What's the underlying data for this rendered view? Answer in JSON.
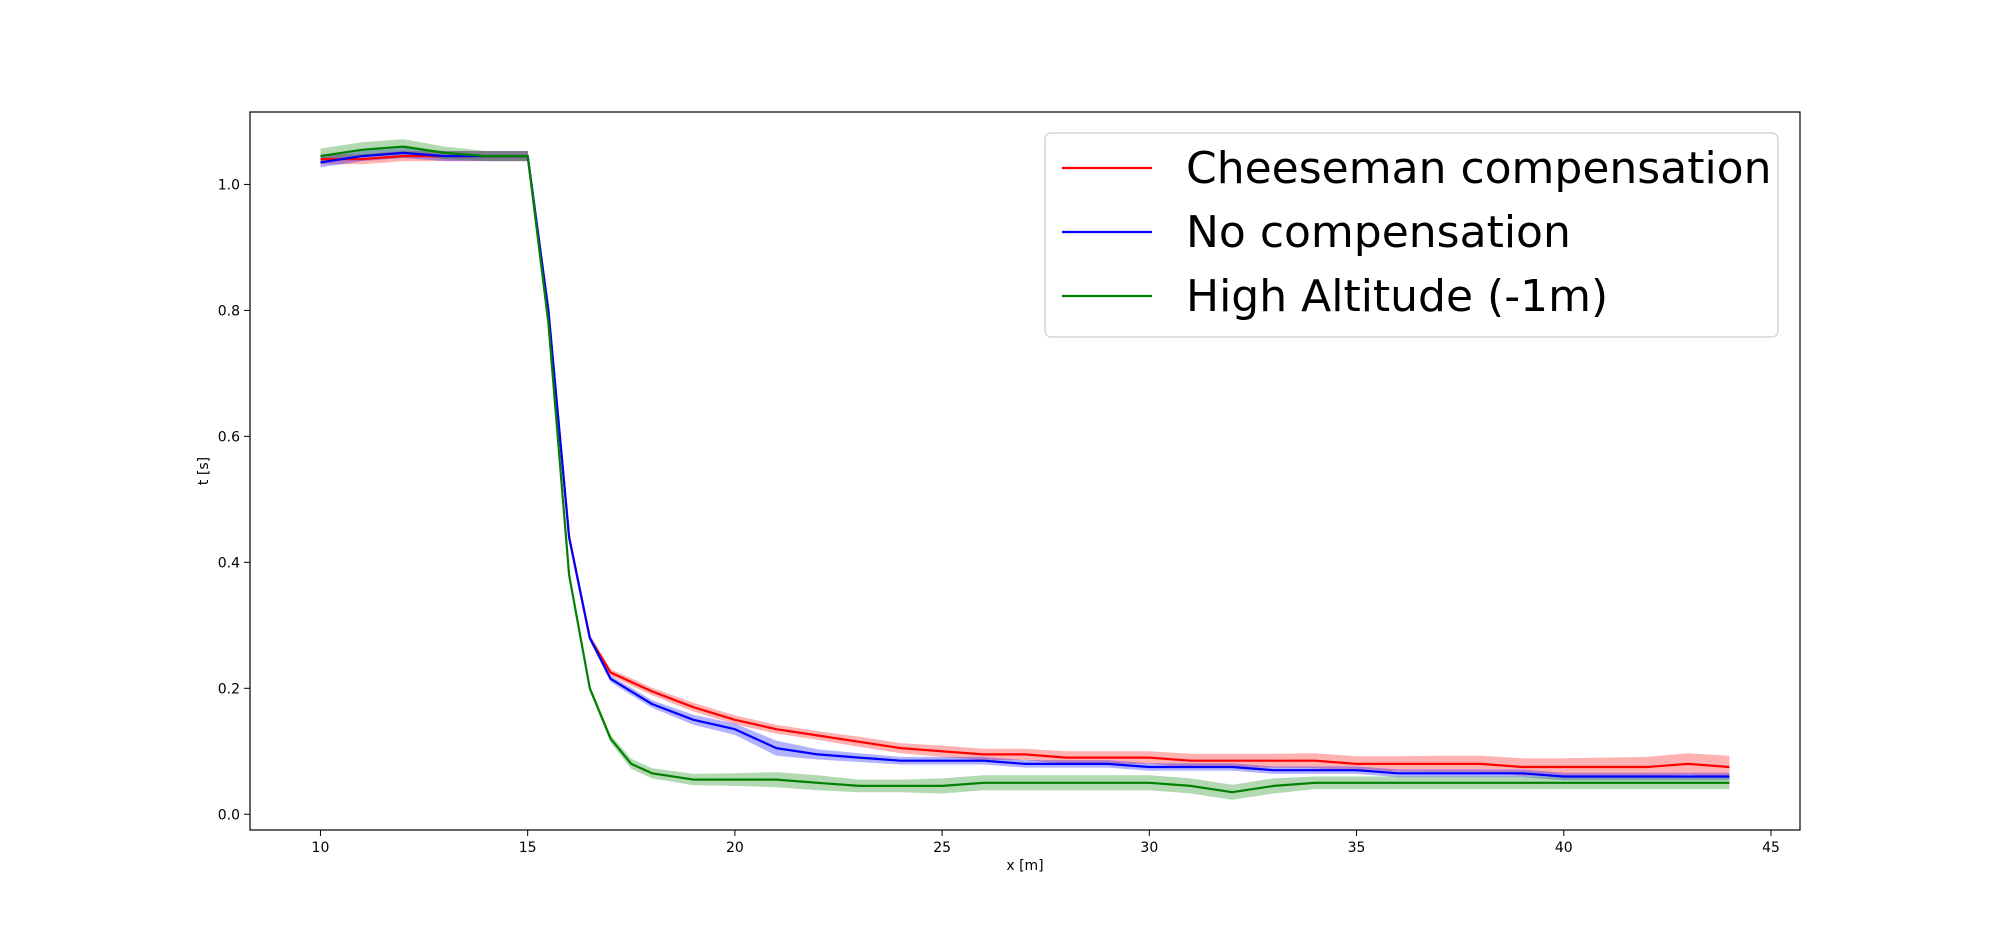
{
  "chart_data": {
    "type": "line",
    "title": "",
    "xlabel": "x [m]",
    "ylabel": "t [s]",
    "xlim": [
      8.3,
      45.7
    ],
    "ylim": [
      -0.025,
      1.115
    ],
    "grid": false,
    "legend_position": "top-right",
    "x_ticks": [
      10,
      15,
      20,
      25,
      30,
      35,
      40,
      45
    ],
    "y_ticks": [
      0.0,
      0.2,
      0.4,
      0.6,
      0.8,
      1.0
    ],
    "x_tick_labels": [
      "10",
      "15",
      "20",
      "25",
      "30",
      "35",
      "40",
      "45"
    ],
    "y_tick_labels": [
      "0.0",
      "0.2",
      "0.4",
      "0.6",
      "0.8",
      "1.0"
    ],
    "series": [
      {
        "name": "Cheeseman compensation",
        "color": "#ff0000",
        "x": [
          10,
          11,
          12,
          13,
          14,
          15,
          15.5,
          16,
          16.5,
          17,
          17.5,
          18,
          19,
          20,
          21,
          22,
          23,
          24,
          25,
          26,
          27,
          28,
          29,
          30,
          31,
          32,
          33,
          34,
          35,
          36,
          37,
          38,
          39,
          40,
          41,
          42,
          43,
          44
        ],
        "y": [
          1.04,
          1.04,
          1.045,
          1.045,
          1.045,
          1.045,
          0.8,
          0.44,
          0.28,
          0.225,
          0.21,
          0.195,
          0.17,
          0.15,
          0.135,
          0.125,
          0.115,
          0.105,
          0.1,
          0.095,
          0.095,
          0.09,
          0.09,
          0.09,
          0.085,
          0.085,
          0.085,
          0.085,
          0.08,
          0.08,
          0.08,
          0.08,
          0.075,
          0.075,
          0.075,
          0.075,
          0.08,
          0.075
        ],
        "band": [
          0.008,
          0.008,
          0.008,
          0.008,
          0.008,
          0.008,
          0.005,
          0.005,
          0.005,
          0.005,
          0.006,
          0.006,
          0.007,
          0.007,
          0.007,
          0.007,
          0.008,
          0.008,
          0.009,
          0.009,
          0.009,
          0.01,
          0.01,
          0.01,
          0.011,
          0.011,
          0.011,
          0.012,
          0.012,
          0.012,
          0.013,
          0.013,
          0.014,
          0.014,
          0.015,
          0.016,
          0.017,
          0.018
        ]
      },
      {
        "name": "No compensation",
        "color": "#0000ff",
        "x": [
          10,
          11,
          12,
          13,
          14,
          15,
          15.5,
          16,
          16.5,
          17,
          17.5,
          18,
          19,
          20,
          21,
          22,
          23,
          24,
          25,
          26,
          27,
          28,
          29,
          30,
          31,
          32,
          33,
          34,
          35,
          36,
          37,
          38,
          39,
          40,
          41,
          42,
          43,
          44
        ],
        "y": [
          1.035,
          1.045,
          1.05,
          1.045,
          1.045,
          1.045,
          0.8,
          0.44,
          0.28,
          0.215,
          0.195,
          0.175,
          0.15,
          0.135,
          0.105,
          0.095,
          0.09,
          0.085,
          0.085,
          0.085,
          0.08,
          0.08,
          0.08,
          0.075,
          0.075,
          0.075,
          0.07,
          0.07,
          0.07,
          0.065,
          0.065,
          0.065,
          0.065,
          0.06,
          0.06,
          0.06,
          0.06,
          0.06
        ],
        "band": [
          0.008,
          0.008,
          0.008,
          0.008,
          0.008,
          0.008,
          0.005,
          0.005,
          0.005,
          0.005,
          0.006,
          0.006,
          0.008,
          0.009,
          0.012,
          0.008,
          0.007,
          0.006,
          0.006,
          0.006,
          0.006,
          0.006,
          0.006,
          0.006,
          0.006,
          0.006,
          0.006,
          0.006,
          0.006,
          0.006,
          0.006,
          0.006,
          0.006,
          0.006,
          0.006,
          0.006,
          0.006,
          0.006
        ]
      },
      {
        "name": "High Altitude (-1m)",
        "color": "#008000",
        "x": [
          10,
          11,
          12,
          13,
          14,
          15,
          15.5,
          16,
          16.5,
          17,
          17.5,
          18,
          19,
          20,
          21,
          22,
          23,
          24,
          25,
          26,
          27,
          28,
          29,
          30,
          31,
          32,
          33,
          34,
          35,
          36,
          37,
          38,
          39,
          40,
          41,
          42,
          43,
          44
        ],
        "y": [
          1.045,
          1.055,
          1.06,
          1.05,
          1.045,
          1.045,
          0.78,
          0.38,
          0.2,
          0.12,
          0.08,
          0.065,
          0.055,
          0.055,
          0.055,
          0.05,
          0.045,
          0.045,
          0.045,
          0.05,
          0.05,
          0.05,
          0.05,
          0.05,
          0.045,
          0.035,
          0.045,
          0.05,
          0.05,
          0.05,
          0.05,
          0.05,
          0.05,
          0.05,
          0.05,
          0.05,
          0.05,
          0.05
        ],
        "band": [
          0.012,
          0.012,
          0.012,
          0.01,
          0.008,
          0.008,
          0.005,
          0.005,
          0.005,
          0.006,
          0.008,
          0.008,
          0.009,
          0.01,
          0.012,
          0.012,
          0.01,
          0.01,
          0.012,
          0.012,
          0.012,
          0.012,
          0.012,
          0.012,
          0.012,
          0.012,
          0.012,
          0.01,
          0.01,
          0.01,
          0.01,
          0.01,
          0.01,
          0.01,
          0.01,
          0.01,
          0.01,
          0.01
        ]
      }
    ]
  }
}
